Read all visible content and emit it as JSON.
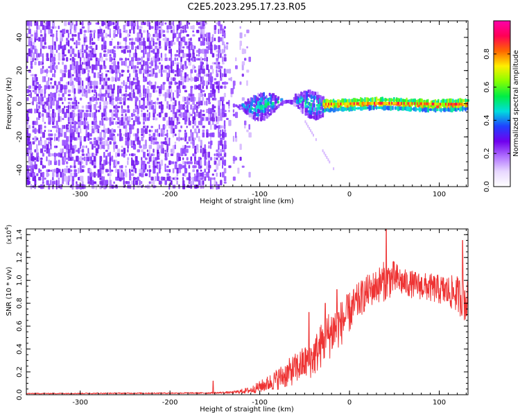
{
  "page_title": "C2E5.2023.295.17.23.R05",
  "colors": {
    "snr_line": "#ee3333",
    "axis": "#000000"
  },
  "chart_data": [
    {
      "type": "heatmap",
      "xlabel": "Height of straight line (km)",
      "ylabel": "Frequency (Hz)",
      "xlim": [
        -360,
        132
      ],
      "ylim": [
        -50,
        50
      ],
      "x_ticks": [
        -300,
        -200,
        -100,
        0,
        100
      ],
      "y_ticks": [
        -40,
        -20,
        0,
        20,
        40
      ],
      "colorbar": {
        "label": "Normalized spectral amplitude",
        "range": [
          0,
          1
        ],
        "ticks": [
          "0.0",
          "0.2",
          "0.4",
          "0.6",
          "0.8"
        ],
        "colormap": [
          "#ffffff",
          "#e8d8ff",
          "#b070ff",
          "#7000ee",
          "#2040ff",
          "#00dddd",
          "#00ee44",
          "#88ff00",
          "#ffee00",
          "#ff6600",
          "#ff0055",
          "#ff00aa"
        ]
      },
      "regions": [
        {
          "x_range": [
            -360,
            -140
          ],
          "f_range": [
            -50,
            50
          ],
          "amplitude": [
            0.02,
            0.18
          ],
          "density": "high"
        },
        {
          "x_range": [
            -140,
            -110
          ],
          "f_range": [
            -50,
            50
          ],
          "amplitude": [
            0.02,
            0.1
          ],
          "density": "low"
        },
        {
          "x_range": [
            -130,
            -30
          ],
          "f_center": 0,
          "f_halfwidth": 6,
          "amplitude": [
            0.15,
            0.45
          ]
        },
        {
          "x_range": [
            -30,
            132
          ],
          "f_center": 0,
          "f_halfwidth": 3,
          "amplitude": [
            0.5,
            0.95
          ]
        }
      ]
    },
    {
      "type": "line",
      "xlabel": "Height of straight line (km)",
      "ylabel": "SNR (10 * v/v)",
      "y_multiplier": "(x10^4)",
      "xlim": [
        -360,
        132
      ],
      "ylim": [
        0,
        1.45
      ],
      "x_ticks": [
        -300,
        -200,
        -100,
        0,
        100
      ],
      "y_ticks": [
        "0.0",
        "0.2",
        "0.4",
        "0.6",
        "0.8",
        "1.0",
        "1.2",
        "1.4"
      ],
      "envelope": {
        "x": [
          -360,
          -160,
          -130,
          -110,
          -90,
          -70,
          -50,
          -40,
          -30,
          -20,
          -10,
          0,
          10,
          20,
          30,
          40,
          50,
          60,
          80,
          100,
          120,
          132
        ],
        "y": [
          0.01,
          0.015,
          0.02,
          0.04,
          0.1,
          0.18,
          0.28,
          0.33,
          0.45,
          0.55,
          0.62,
          0.72,
          0.82,
          0.9,
          0.95,
          1.0,
          1.02,
          0.98,
          0.95,
          0.92,
          0.88,
          0.8
        ],
        "noise": [
          0.004,
          0.006,
          0.01,
          0.03,
          0.07,
          0.12,
          0.15,
          0.18,
          0.2,
          0.22,
          0.2,
          0.18,
          0.16,
          0.15,
          0.15,
          0.18,
          0.15,
          0.12,
          0.12,
          0.13,
          0.16,
          0.2
        ]
      },
      "peaks": [
        {
          "x": -152,
          "y": 0.12
        },
        {
          "x": -45,
          "y": 0.72
        },
        {
          "x": -27,
          "y": 0.8
        },
        {
          "x": -14,
          "y": 0.92
        },
        {
          "x": 41,
          "y": 1.45
        },
        {
          "x": 126,
          "y": 1.35
        }
      ]
    }
  ]
}
